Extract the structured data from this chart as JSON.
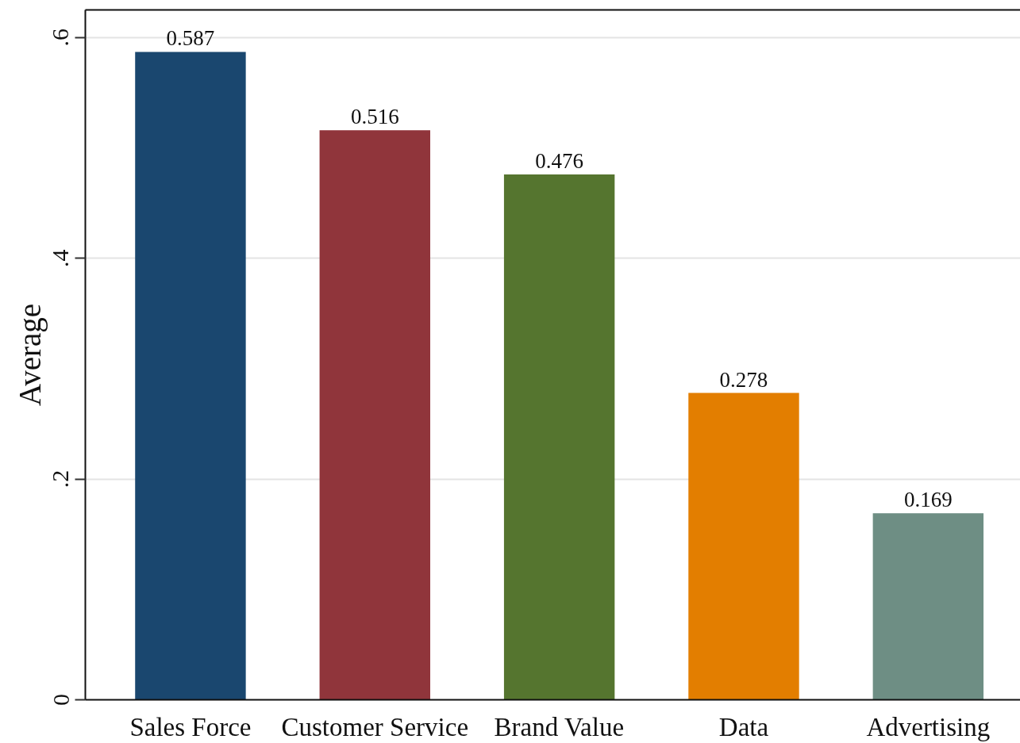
{
  "chart_data": {
    "type": "bar",
    "ylabel": "Average",
    "categories": [
      "Sales Force",
      "Customer Service",
      "Brand Value",
      "Data",
      "Advertising"
    ],
    "values": [
      0.587,
      0.516,
      0.476,
      0.278,
      0.169
    ],
    "colors": [
      "#1a476f",
      "#90353b",
      "#55752f",
      "#e37e00",
      "#6e8e84"
    ],
    "ylim": [
      0,
      0.625
    ],
    "yticks": [
      0,
      {
        "value": 0.2,
        "label": ".2"
      },
      {
        "value": 0.4,
        "label": ".4"
      },
      {
        "value": 0.6,
        "label": ".6"
      }
    ],
    "grid": "y",
    "data_labels": true
  }
}
